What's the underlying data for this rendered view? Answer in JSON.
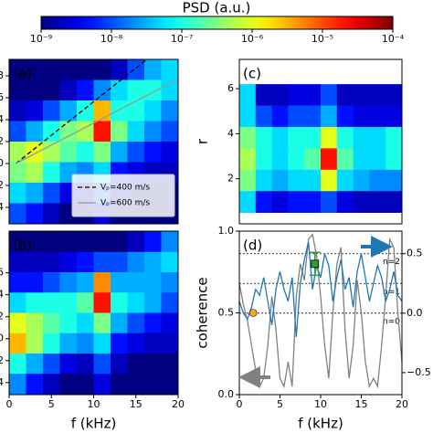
{
  "colorbar": {
    "label": "PSD (a.u.)",
    "log": true,
    "colormap": "jet",
    "lim": [
      1e-09,
      0.0001
    ],
    "ticks": [
      {
        "value": 1e-09,
        "label": "10⁻⁹"
      },
      {
        "value": 1e-08,
        "label": "10⁻⁸"
      },
      {
        "value": 1e-07,
        "label": "10⁻⁷"
      },
      {
        "value": 1e-06,
        "label": "10⁻⁶"
      },
      {
        "value": 1e-05,
        "label": "10⁻⁵"
      },
      {
        "value": 0.0001,
        "label": "10⁻⁴"
      }
    ]
  },
  "chart_data": [
    {
      "type": "heatmap",
      "label": "(a)",
      "xlim": [
        0,
        20
      ],
      "ylim": [
        -5.5,
        9.5
      ],
      "yticks": [
        8,
        6,
        4,
        2,
        0,
        {
          "value": -2,
          "label": "−2"
        },
        {
          "value": -4,
          "label": "−4"
        }
      ],
      "xbins": [
        0,
        2,
        4,
        6,
        8,
        10,
        12,
        14,
        16,
        18,
        20
      ],
      "ybins": [
        9.5,
        7.625,
        5.75,
        3.875,
        2,
        0.125,
        -1.75,
        -3.625,
        -5.5
      ],
      "z": [
        [
          1e-09,
          1e-09,
          1e-09,
          1e-09,
          1e-09,
          1e-09,
          2e-09,
          1e-08,
          3e-08,
          5e-08
        ],
        [
          1e-09,
          1e-09,
          1e-09,
          2e-09,
          5e-09,
          2e-08,
          5e-08,
          1e-07,
          1e-07,
          5e-08
        ],
        [
          2e-09,
          3e-09,
          1e-08,
          3e-08,
          1e-07,
          3e-06,
          1e-07,
          1e-07,
          5e-08,
          2e-08
        ],
        [
          1e-08,
          3e-08,
          1e-07,
          3e-07,
          5e-07,
          2e-05,
          3e-07,
          5e-08,
          2e-08,
          1e-08
        ],
        [
          5e-07,
          1e-06,
          5e-07,
          2e-07,
          1e-07,
          3e-07,
          3e-08,
          1e-08,
          5e-09,
          3e-09
        ],
        [
          3e-07,
          5e-07,
          1e-07,
          3e-08,
          2e-08,
          5e-08,
          5e-09,
          3e-09,
          2e-09,
          2e-09
        ],
        [
          5e-08,
          3e-08,
          1e-08,
          3e-09,
          2e-09,
          1e-08,
          2e-09,
          1e-09,
          1e-09,
          1e-09
        ],
        [
          1e-08,
          5e-09,
          2e-09,
          1e-09,
          1e-09,
          3e-09,
          1e-09,
          1e-09,
          1e-09,
          1e-09
        ]
      ],
      "legend": "lower right",
      "series": [
        {
          "name": "Vₚ=400 m/s",
          "color": "#000000",
          "dash": true,
          "x": [
            0.8,
            16.3
          ],
          "values": [
            0,
            9.5
          ]
        },
        {
          "name": "Vₚ=600 m/s",
          "color": "#999999",
          "dash": false,
          "x": [
            0.8,
            20
          ],
          "values": [
            0,
            7.7
          ]
        }
      ]
    },
    {
      "type": "heatmap",
      "label": "(b)",
      "xlim": [
        0,
        20
      ],
      "ylim": [
        -5.1,
        9.8
      ],
      "xticks": [
        0,
        5,
        10,
        15,
        20
      ],
      "xlabel": "f (kHz)",
      "yticks": [
        6,
        4,
        2,
        0,
        {
          "value": -2,
          "label": "−2"
        },
        {
          "value": -4,
          "label": "−4"
        }
      ],
      "xbins": [
        0,
        2,
        4,
        6,
        8,
        10,
        12,
        14,
        16,
        18,
        20
      ],
      "ybins": [
        9.8,
        7.9,
        6.05,
        4.2,
        2.35,
        0.5,
        -1.35,
        -3.2,
        -5.1
      ],
      "z": [
        [
          1e-09,
          1e-09,
          1e-09,
          1e-09,
          1e-09,
          1e-09,
          1e-09,
          2e-09,
          5e-09,
          2e-08
        ],
        [
          2e-09,
          2e-09,
          2e-09,
          3e-09,
          5e-09,
          1e-08,
          1e-08,
          2e-08,
          3e-08,
          5e-08
        ],
        [
          5e-09,
          5e-09,
          1e-08,
          2e-08,
          3e-08,
          5e-06,
          3e-08,
          3e-08,
          3e-08,
          2e-08
        ],
        [
          5e-08,
          1e-07,
          1e-07,
          1e-07,
          2e-07,
          2e-05,
          1e-07,
          5e-08,
          3e-08,
          1e-08
        ],
        [
          1e-06,
          5e-07,
          2e-07,
          1e-07,
          5e-08,
          3e-07,
          3e-08,
          1e-08,
          5e-09,
          3e-09
        ],
        [
          3e-06,
          5e-07,
          1e-07,
          3e-08,
          2e-08,
          5e-08,
          5e-09,
          3e-09,
          2e-09,
          2e-09
        ],
        [
          1e-07,
          3e-08,
          1e-08,
          3e-09,
          2e-09,
          1e-08,
          2e-09,
          1e-09,
          1e-09,
          1e-09
        ],
        [
          2e-08,
          5e-09,
          2e-09,
          1e-09,
          1e-09,
          3e-09,
          1e-09,
          1e-09,
          1e-09,
          1e-09
        ]
      ]
    },
    {
      "type": "heatmap",
      "label": "(c)",
      "xlim": [
        0,
        20
      ],
      "ylim": [
        0,
        7.3
      ],
      "ylabel": "r",
      "yticks": [
        2,
        4,
        6
      ],
      "xbins": [
        0,
        2,
        4,
        6,
        8,
        10,
        12,
        14,
        16,
        18,
        20
      ],
      "ybins": [
        6.2,
        5.25,
        4.3,
        3.35,
        2.4,
        1.45,
        0.5
      ],
      "z": [
        [
          5e-08,
          2e-09,
          2e-09,
          3e-09,
          3e-09,
          1e-08,
          2e-09,
          2e-09,
          2e-09,
          2e-09
        ],
        [
          5e-08,
          1e-08,
          5e-09,
          1e-08,
          1e-08,
          3e-08,
          5e-09,
          3e-09,
          3e-09,
          3e-09
        ],
        [
          3e-07,
          1e-07,
          5e-08,
          1e-07,
          1e-07,
          1e-06,
          1e-07,
          5e-08,
          5e-08,
          1e-07
        ],
        [
          5e-07,
          1e-07,
          5e-08,
          1e-07,
          2e-07,
          2e-05,
          2e-07,
          5e-08,
          5e-08,
          1e-07
        ],
        [
          3e-07,
          5e-08,
          3e-08,
          5e-08,
          5e-08,
          1e-06,
          5e-08,
          3e-08,
          2e-08,
          2e-08
        ],
        [
          5e-08,
          5e-09,
          3e-09,
          5e-09,
          5e-09,
          1e-08,
          3e-09,
          2e-09,
          2e-09,
          2e-09
        ]
      ]
    },
    {
      "type": "line",
      "label": "(d)",
      "xlim": [
        0,
        20
      ],
      "ylim": [
        0,
        1
      ],
      "y2lim": [
        -0.685,
        0.69
      ],
      "xticks": [
        0,
        5,
        10,
        15,
        20
      ],
      "xlabel": "f (kHz)",
      "ylabel": "coherence",
      "yticks": [
        {
          "value": 0,
          "label": "0.0"
        },
        0.5,
        {
          "value": 1,
          "label": "1.0"
        }
      ],
      "y2ticks": [
        0.5,
        {
          "value": 0,
          "label": "0.0"
        },
        {
          "value": -0.5,
          "label": "−0.5"
        }
      ],
      "hlines": [
        {
          "value": 0.5,
          "label": "n=2"
        },
        {
          "value": 0.25,
          "label": "n=1"
        },
        {
          "value": 0,
          "label": "n=0"
        }
      ],
      "x": [
        0,
        0.5,
        1,
        1.5,
        2,
        2.5,
        3,
        3.5,
        4,
        4.5,
        5,
        5.5,
        6,
        6.5,
        7,
        7.5,
        8,
        8.5,
        9,
        9.5,
        10,
        10.5,
        11,
        11.5,
        12,
        12.5,
        13,
        13.5,
        14,
        14.5,
        15,
        15.5,
        16,
        16.5,
        17,
        17.5,
        18,
        18.5,
        19,
        19.5,
        20
      ],
      "series": [
        {
          "color": "#808080",
          "axis": "y",
          "values": [
            0.68,
            0.55,
            0.45,
            0.3,
            0.15,
            0.05,
            0.1,
            0.3,
            0.6,
            0.4,
            0.1,
            0.05,
            0.2,
            0.05,
            0.6,
            0.8,
            0.7,
            0.95,
            0.98,
            0.85,
            0.6,
            0.3,
            0.1,
            0.5,
            0.8,
            0.9,
            0.4,
            0.1,
            0.3,
            0.7,
            0.5,
            0.2,
            0.05,
            0.1,
            0.05,
            0.3,
            0.6,
            0.95,
            0.9,
            0.5,
            0.2
          ]
        },
        {
          "color": "#1f77b4",
          "axis": "y2",
          "values": [
            0.1,
            0.0,
            -0.05,
            0.05,
            0.2,
            0.15,
            0.3,
            0.1,
            -0.1,
            0.2,
            0.35,
            0.2,
            0.1,
            0.3,
            -0.2,
            0.25,
            0.45,
            0.6,
            0.2,
            0.4,
            0.3,
            0.5,
            0.4,
            0.1,
            0.3,
            0.45,
            0.2,
            0.3,
            0.05,
            0.35,
            0.5,
            0.3,
            0.1,
            0.25,
            0.4,
            0.3,
            0.1,
            0.2,
            0.35,
            0.15,
            0.1
          ]
        }
      ],
      "points": [
        {
          "x": 1.7,
          "y": 0.5,
          "color": "#f5a623",
          "marker": "circle"
        },
        {
          "x": 9.3,
          "y": 0.8,
          "err": 0.07,
          "color": "#2ca02c",
          "marker": "square"
        }
      ]
    }
  ]
}
